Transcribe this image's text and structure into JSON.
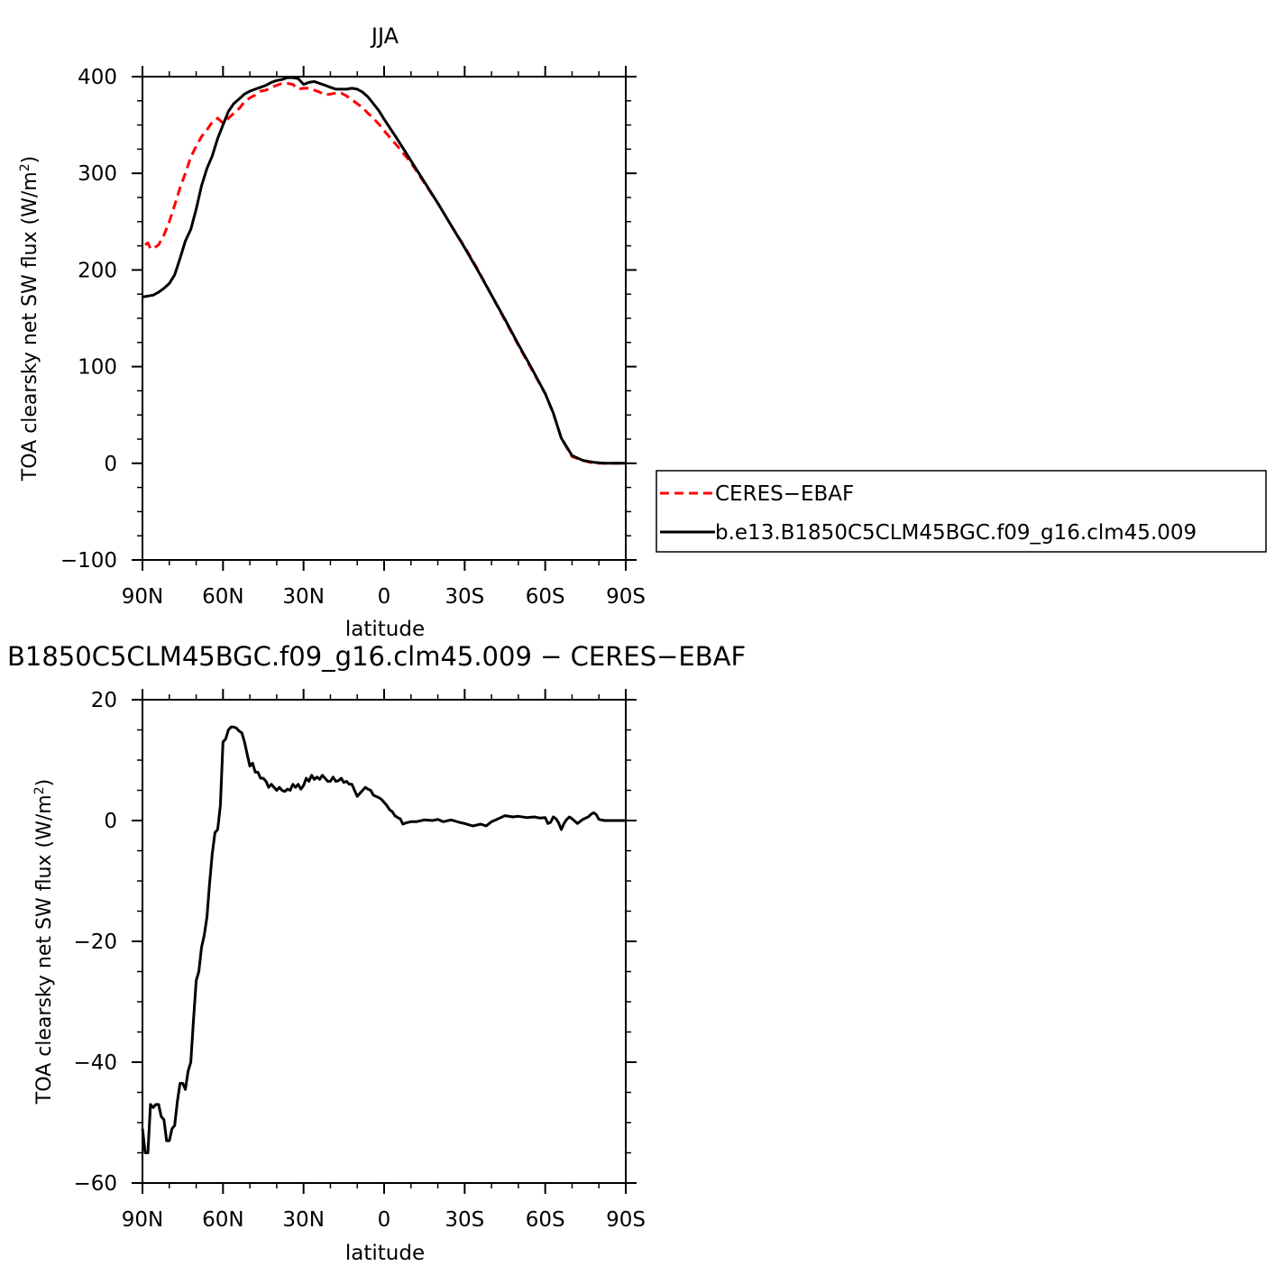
{
  "chart_data": [
    {
      "type": "line",
      "title": "JJA",
      "xlabel": "latitude",
      "ylabel": "TOA clearsky net SW flux (W/m²)",
      "ylabel_parts": {
        "text": "TOA clearsky net SW flux (W/m",
        "sup": "2",
        "end": ")"
      },
      "xlim": [
        90,
        -90
      ],
      "ylim": [
        -100,
        400
      ],
      "xticks": [
        90,
        60,
        30,
        0,
        -30,
        -60,
        -90
      ],
      "xtick_labels": [
        "90N",
        "60N",
        "30N",
        "0",
        "30S",
        "60S",
        "90S"
      ],
      "yticks": [
        -100,
        0,
        100,
        200,
        300,
        400
      ],
      "ytick_labels": [
        "−100",
        "0",
        "100",
        "200",
        "300",
        "400"
      ],
      "grid": false,
      "legend_position": "right, outside plot",
      "series": [
        {
          "name": "CERES−EBAF",
          "color": "#ff0000",
          "style": "dashed",
          "x": [
            89,
            88,
            87,
            86,
            84,
            82,
            80,
            78,
            76,
            74,
            72,
            70,
            68,
            66,
            64,
            62,
            60,
            58,
            56,
            54,
            52,
            50,
            48,
            46,
            44,
            42,
            40,
            38,
            36,
            34,
            32,
            30,
            28,
            26,
            24,
            22,
            20,
            18,
            16,
            14,
            12,
            10,
            8,
            6,
            4,
            2,
            0,
            -5,
            -10,
            -15,
            -20,
            -25,
            -30,
            -35,
            -40,
            -45,
            -50,
            -55,
            -60,
            -63,
            -66,
            -70,
            -74,
            -78,
            -82,
            -86,
            -90
          ],
          "y": [
            226,
            228,
            222,
            222,
            226,
            236,
            250,
            267,
            285,
            300,
            317,
            328,
            338,
            345,
            353,
            357,
            352,
            357,
            362,
            367,
            374,
            378,
            381,
            385,
            386,
            389,
            391,
            393,
            393,
            392,
            387,
            388,
            388,
            386,
            384,
            381,
            382,
            383,
            383,
            380,
            376,
            372,
            368,
            362,
            357,
            351,
            344,
            328,
            311,
            290,
            269,
            246,
            224,
            200,
            174,
            148,
            122,
            97,
            72,
            52,
            26,
            7,
            3,
            0,
            0,
            0,
            0
          ]
        },
        {
          "name": "b.e13.B1850C5CLM45BGC.f09_g16.clm45.009",
          "color": "#000000",
          "style": "solid",
          "x": [
            90,
            88,
            86,
            84,
            82,
            80,
            78,
            76,
            74,
            72,
            70,
            68,
            66,
            64,
            62,
            60,
            58,
            56,
            54,
            52,
            50,
            48,
            46,
            44,
            42,
            40,
            38,
            36,
            34,
            32,
            30,
            28,
            26,
            24,
            22,
            20,
            18,
            16,
            14,
            12,
            10,
            8,
            6,
            4,
            2,
            0,
            -5,
            -10,
            -15,
            -20,
            -25,
            -30,
            -35,
            -40,
            -45,
            -50,
            -55,
            -60,
            -63,
            -66,
            -70,
            -74,
            -78,
            -82,
            -86,
            -90
          ],
          "y": [
            172,
            173,
            174,
            177,
            181,
            186,
            195,
            212,
            230,
            242,
            263,
            287,
            305,
            318,
            336,
            350,
            364,
            372,
            377,
            382,
            385,
            387,
            389,
            391,
            394,
            396,
            397,
            399,
            399,
            398,
            392,
            394,
            395,
            393,
            391,
            389,
            387,
            387,
            387,
            388,
            387,
            384,
            379,
            372,
            365,
            356,
            335,
            313,
            291,
            269,
            246,
            223,
            199,
            174,
            149,
            123,
            98,
            72,
            52,
            26,
            8,
            3,
            1,
            0,
            0,
            0
          ]
        }
      ]
    },
    {
      "type": "line",
      "title": "B1850C5CLM45BGC.f09_g16.clm45.009 − CERES−EBAF",
      "xlabel": "latitude",
      "ylabel": "TOA clearsky net SW flux (W/m²)",
      "ylabel_parts": {
        "text": "TOA clearsky net SW flux (W/m",
        "sup": "2",
        "end": ")"
      },
      "xlim": [
        90,
        -90
      ],
      "ylim": [
        -60,
        20
      ],
      "xticks": [
        90,
        60,
        30,
        0,
        -30,
        -60,
        -90
      ],
      "xtick_labels": [
        "90N",
        "60N",
        "30N",
        "0",
        "30S",
        "60S",
        "90S"
      ],
      "yticks": [
        -60,
        -40,
        -20,
        0,
        20
      ],
      "ytick_labels": [
        "−60",
        "−40",
        "−20",
        "0",
        "20"
      ],
      "grid": false,
      "series": [
        {
          "name": "",
          "color": "#000000",
          "style": "solid",
          "x": [
            90,
            89,
            88,
            87,
            86,
            85,
            84,
            83,
            82,
            81,
            80,
            79,
            78,
            77,
            76,
            75,
            74,
            73,
            72,
            71,
            70,
            69,
            68,
            67,
            66,
            65,
            64,
            63,
            62,
            61,
            60,
            59,
            58,
            57,
            56,
            55,
            54,
            53,
            52,
            51,
            50,
            49,
            48,
            47,
            46,
            45,
            44,
            43,
            42,
            41,
            40,
            39,
            38,
            37,
            36,
            35,
            34,
            33,
            32,
            31,
            30,
            29,
            28,
            27,
            26,
            25,
            24,
            23,
            22,
            21,
            20,
            19,
            18,
            17,
            16,
            15,
            14,
            13,
            12,
            11,
            10,
            9,
            8,
            7,
            6,
            5,
            4,
            3,
            2,
            1,
            0,
            -1,
            -2,
            -3,
            -4,
            -5,
            -6,
            -7,
            -8,
            -10,
            -12,
            -15,
            -18,
            -20,
            -22,
            -25,
            -28,
            -30,
            -33,
            -36,
            -38,
            -40,
            -42,
            -45,
            -48,
            -50,
            -53,
            -56,
            -58,
            -60,
            -61,
            -62,
            -63,
            -64,
            -65,
            -66,
            -67,
            -68,
            -69,
            -70,
            -72,
            -74,
            -76,
            -77,
            -78,
            -79,
            -80,
            -82,
            -85,
            -88,
            -90
          ],
          "y": [
            -51,
            -55,
            -55,
            -47,
            -47.5,
            -47,
            -47,
            -49,
            -49.5,
            -53,
            -53,
            -51,
            -50.5,
            -46.5,
            -43.5,
            -43.5,
            -44.5,
            -41.5,
            -40,
            -33,
            -26.5,
            -25,
            -21,
            -19,
            -16,
            -10.5,
            -5.5,
            -2,
            -1.5,
            2.5,
            13,
            13.5,
            15,
            15.5,
            15.5,
            15.3,
            14.8,
            14.5,
            13,
            11,
            9,
            9.5,
            8,
            8,
            7,
            7,
            6.5,
            5.5,
            6,
            5.5,
            5,
            5.5,
            5,
            4.8,
            5.2,
            5,
            6,
            5.5,
            6,
            5.2,
            5.8,
            7,
            6.5,
            7.5,
            6.8,
            7.2,
            6.8,
            7.5,
            7,
            6.5,
            6.5,
            7.2,
            6.5,
            6.6,
            7,
            6.3,
            6.5,
            6,
            6,
            5,
            4,
            4.5,
            5,
            5.5,
            5.2,
            5,
            4.2,
            4,
            3.8,
            3.5,
            3,
            2.5,
            1.8,
            1.5,
            0.8,
            0.5,
            0.3,
            -0.6,
            -0.4,
            -0.2,
            -0.2,
            0.1,
            0,
            0.2,
            -0.2,
            0.1,
            -0.3,
            -0.5,
            -0.9,
            -0.6,
            -0.9,
            -0.2,
            0.2,
            0.8,
            0.6,
            0.7,
            0.5,
            0.6,
            0.4,
            0.5,
            -0.5,
            -0.3,
            0.6,
            0.3,
            -0.4,
            -1.5,
            -0.5,
            0.2,
            0.6,
            0.3,
            -0.5,
            0.2,
            0.6,
            1,
            1.3,
            1,
            0.2,
            0,
            0,
            0,
            0
          ]
        }
      ]
    }
  ]
}
